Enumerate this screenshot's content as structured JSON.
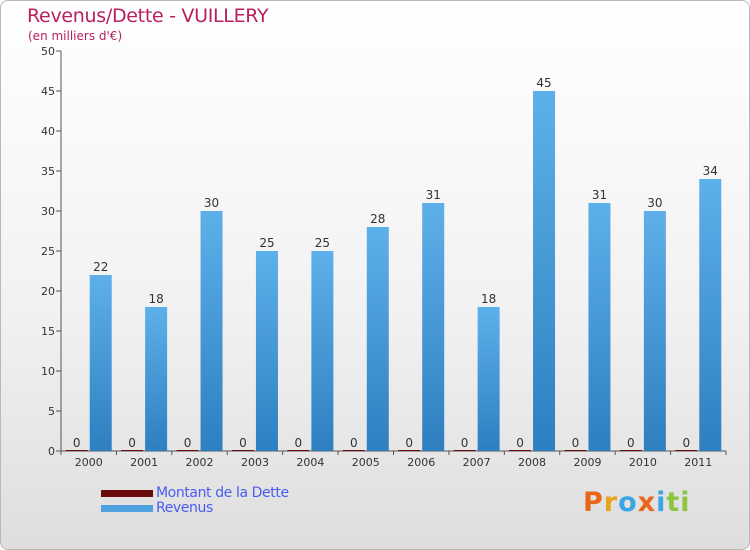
{
  "header": {
    "title": "Revenus/Dette - VUILLERY",
    "subtitle": "(en milliers d'€)"
  },
  "legend": {
    "items": [
      {
        "label": "Montant de la Dette",
        "color": "#6b0c0c"
      },
      {
        "label": "Revenus",
        "color": "#4fa2e0"
      }
    ]
  },
  "logo": {
    "text": "Proxiti",
    "colors": [
      "#e8651a",
      "#e8a51a",
      "#3aa6e3",
      "#e8651a",
      "#3aa6e3",
      "#8cc63f",
      "#8cc63f"
    ]
  },
  "chart_data": {
    "type": "bar",
    "title": "Revenus/Dette - VUILLERY",
    "ylabel": "(en milliers d'€)",
    "xlabel": "",
    "categories": [
      "2000",
      "2001",
      "2002",
      "2003",
      "2004",
      "2005",
      "2006",
      "2007",
      "2008",
      "2009",
      "2010",
      "2011"
    ],
    "series": [
      {
        "name": "Montant de la Dette",
        "color": "#6b0c0c",
        "values": [
          0,
          0,
          0,
          0,
          0,
          0,
          0,
          0,
          0,
          0,
          0,
          0
        ]
      },
      {
        "name": "Revenus",
        "color": "#4fa2e0",
        "values": [
          22,
          18,
          30,
          25,
          25,
          28,
          31,
          18,
          45,
          31,
          30,
          34
        ]
      }
    ],
    "ylim": [
      0,
      50
    ],
    "yticks": [
      0,
      5,
      10,
      15,
      20,
      25,
      30,
      35,
      40,
      45,
      50
    ],
    "grid": false,
    "legend_position": "bottom-left"
  }
}
